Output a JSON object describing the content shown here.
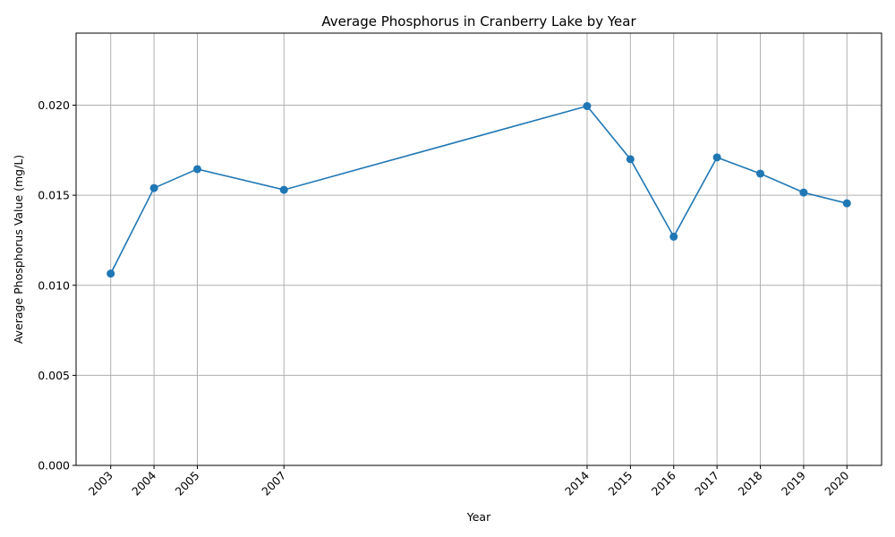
{
  "chart_data": {
    "type": "line",
    "title": "Average Phosphorus in Cranberry Lake by Year",
    "xlabel": "Year",
    "ylabel": "Average Phosphorus Value (mg/L)",
    "x": [
      2003,
      2004,
      2005,
      2007,
      2014,
      2015,
      2016,
      2017,
      2018,
      2019,
      2020
    ],
    "y": [
      0.01065,
      0.0154,
      0.01645,
      0.0153,
      0.01995,
      0.017,
      0.0127,
      0.0171,
      0.0162,
      0.01515,
      0.01455
    ],
    "xlim": [
      2002.2,
      2020.8
    ],
    "ylim": [
      0,
      0.024
    ],
    "yticks": [
      "0.000",
      "0.005",
      "0.010",
      "0.015",
      "0.020"
    ],
    "ytick_values": [
      0,
      0.005,
      0.01,
      0.015,
      0.02
    ],
    "xticks": [
      "2003",
      "2004",
      "2005",
      "2007",
      "2014",
      "2015",
      "2016",
      "2017",
      "2018",
      "2019",
      "2020"
    ],
    "grid": true,
    "line_color": "#1f77b4",
    "marker": "circle"
  }
}
